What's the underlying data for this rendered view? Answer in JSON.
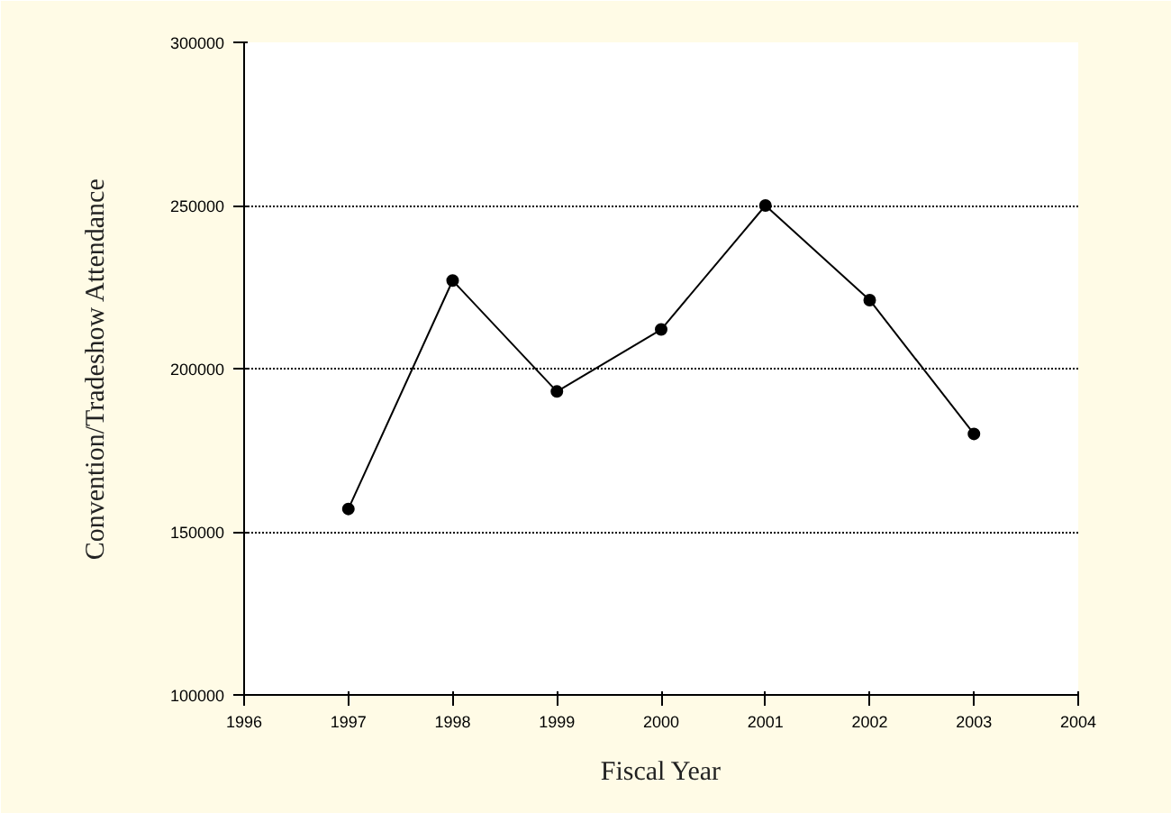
{
  "chart_data": {
    "type": "line",
    "xlabel": "Fiscal Year",
    "ylabel": "Convention/Tradeshow Attendance",
    "x": [
      1997,
      1998,
      1999,
      2000,
      2001,
      2002,
      2003
    ],
    "series": [
      {
        "color": "#000000",
        "values": [
          157000,
          227000,
          193000,
          212000,
          250000,
          221000,
          180000
        ]
      }
    ],
    "xlim": [
      1996,
      2004
    ],
    "xticks": [
      1996,
      1997,
      1998,
      1999,
      2000,
      2001,
      2002,
      2003,
      2004
    ],
    "ylim": [
      100000,
      300000
    ],
    "yticks": [
      100000,
      150000,
      200000,
      250000,
      300000
    ],
    "grid": "y",
    "marker": "circle",
    "line_style": "solid"
  }
}
